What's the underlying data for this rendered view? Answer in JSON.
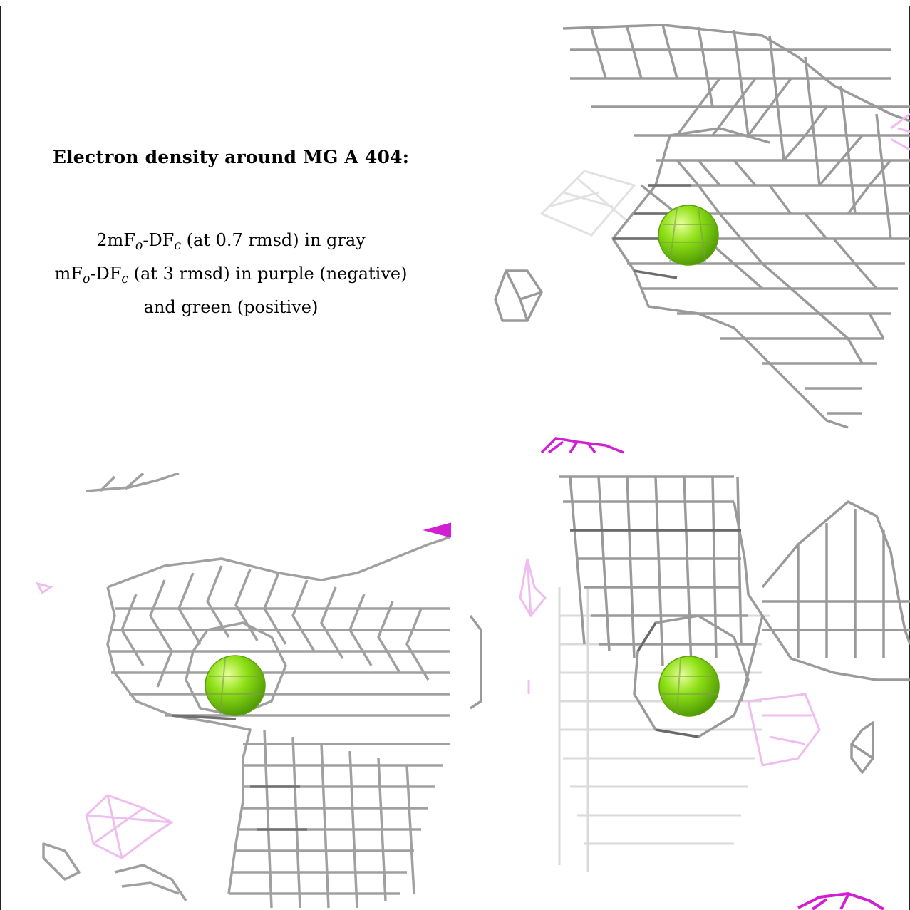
{
  "caption": {
    "title": "Electron density around MG A 404:",
    "line1_main": "2mF",
    "line1_sub1": "o",
    "line1_mid": "-DF",
    "line1_sub2": "c",
    "line1_rest": " (at 0.7 rmsd) in gray",
    "line2_main": "mF",
    "line2_sub1": "o",
    "line2_mid": "-DF",
    "line2_sub2": "c",
    "line2_rest": " (at 3 rmsd) in purple (negative)",
    "line3": "and green (positive)"
  },
  "colors": {
    "mesh_gray": "#8e8e8e",
    "mesh_light": "#cfcfcf",
    "density_negative": "#d21fd2",
    "density_negative_faint": "#f0bdf0",
    "atom_mg": "#8ee015",
    "border": "#222222"
  },
  "panels": [
    {
      "id": "view-1",
      "atom": "MG A 404"
    },
    {
      "id": "view-2",
      "atom": "MG A 404"
    },
    {
      "id": "view-3",
      "atom": "MG A 404"
    }
  ]
}
